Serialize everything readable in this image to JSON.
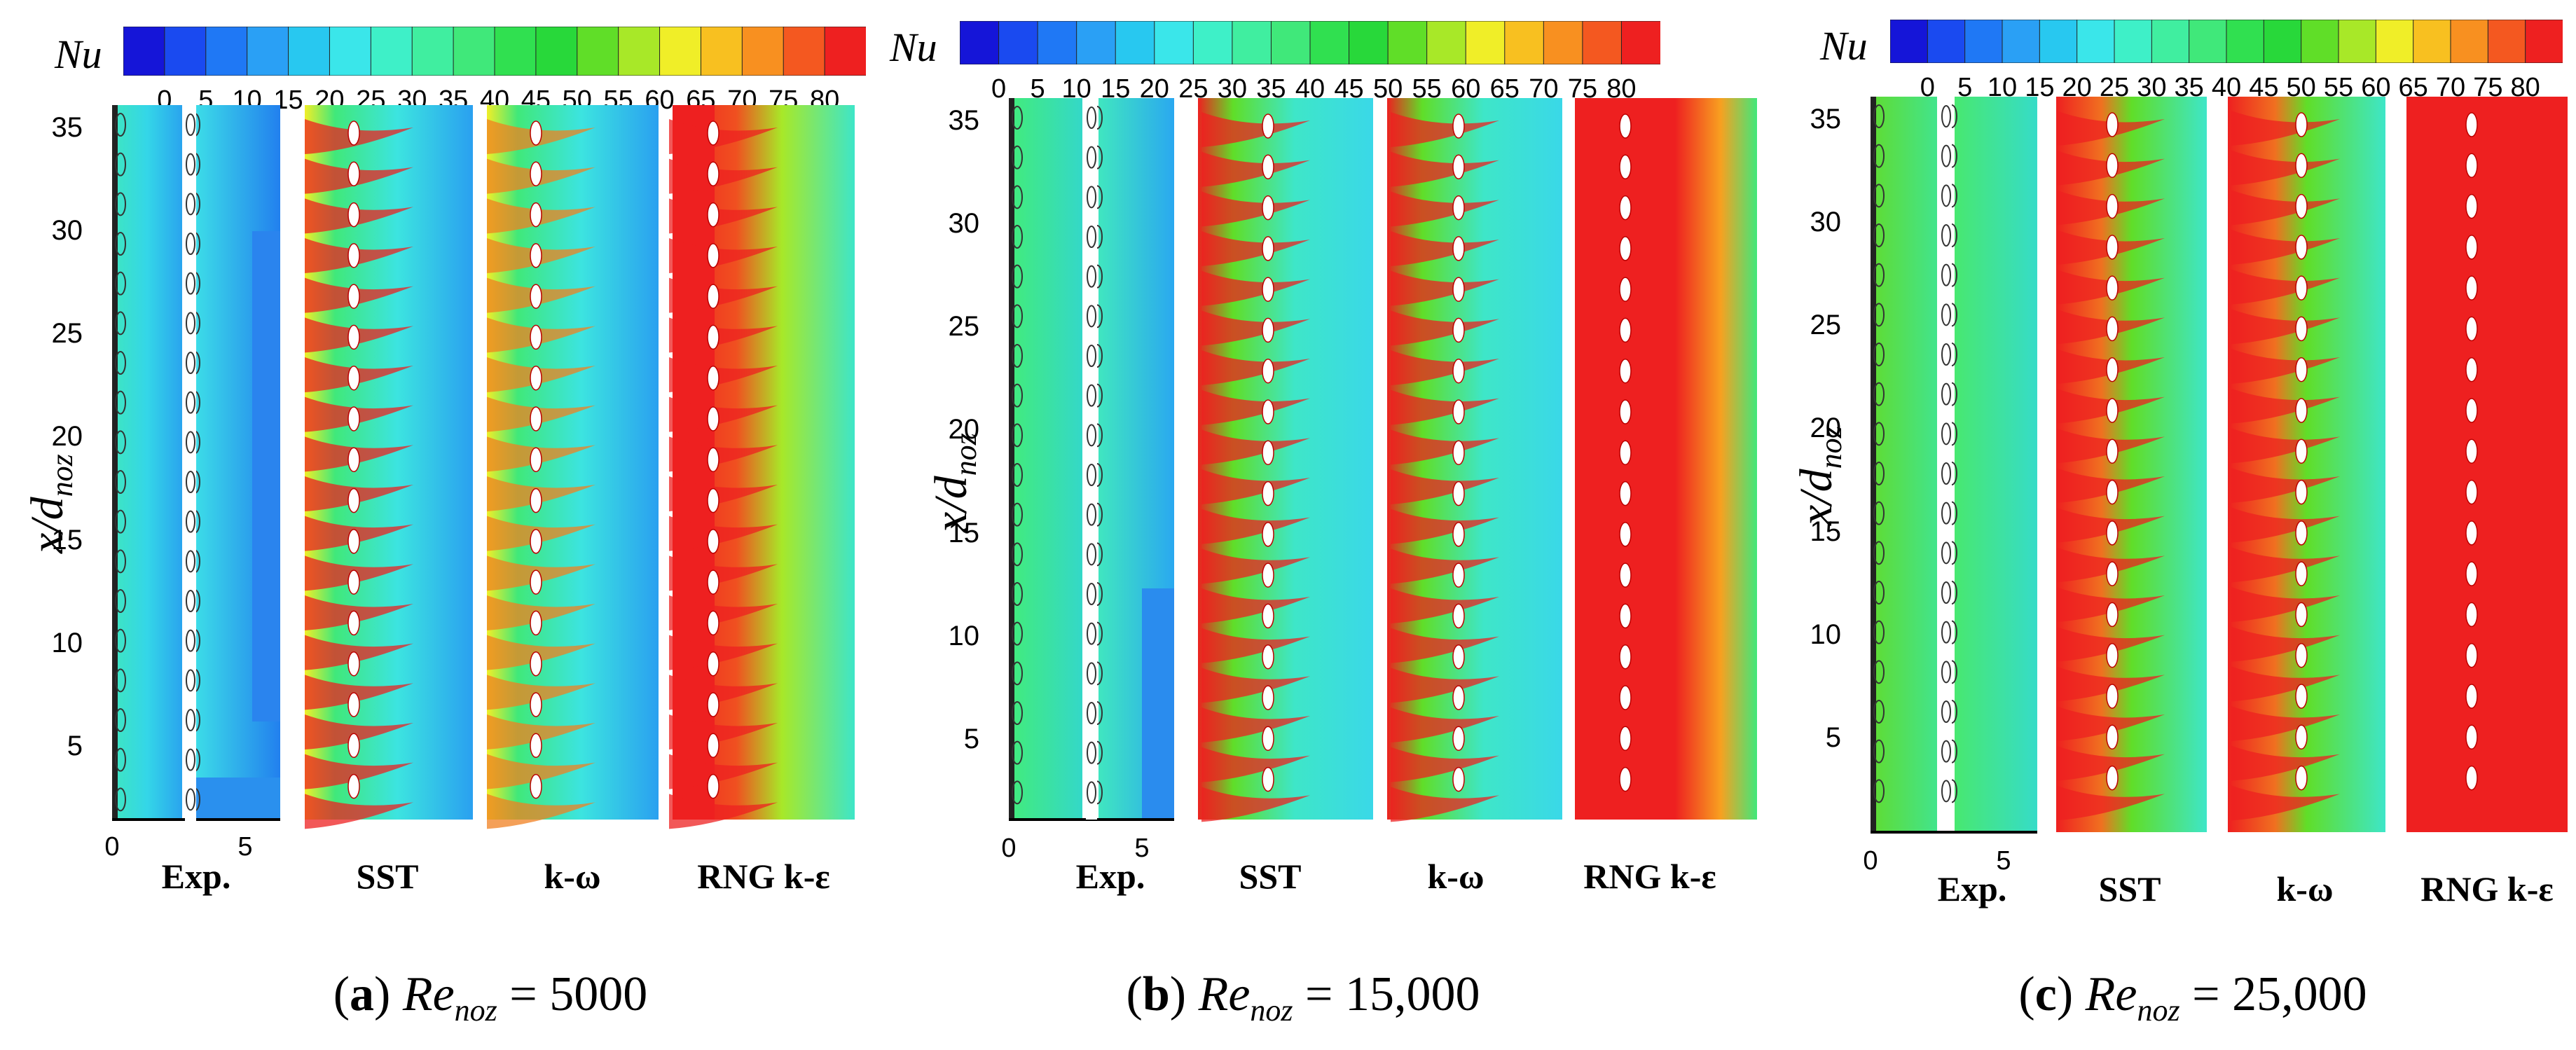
{
  "figure": {
    "colorbar": {
      "label": "Nu",
      "ticks": [
        "0",
        "5",
        "10",
        "15",
        "20",
        "25",
        "30",
        "35",
        "40",
        "45",
        "50",
        "55",
        "60",
        "65",
        "70",
        "75",
        "80"
      ],
      "colors": [
        "#1515d8",
        "#1a4af0",
        "#1f78f5",
        "#2aa0f5",
        "#28c8f0",
        "#3ae6ea",
        "#3ef0c8",
        "#40eea0",
        "#40e87a",
        "#30e050",
        "#28d83a",
        "#60de28",
        "#a8e828",
        "#f0ee28",
        "#f8c020",
        "#f89020",
        "#f45820",
        "#ee2020"
      ]
    },
    "axis": {
      "ylabel_main": "x/d",
      "ylabel_sub": "noz",
      "y_ticks": [
        "35",
        "30",
        "25",
        "20",
        "15",
        "10",
        "5"
      ],
      "x_ticks": [
        "0",
        "5"
      ]
    },
    "strip_titles": [
      "Exp.",
      "SST",
      "k-ω",
      "RNG k-ε"
    ],
    "panels": [
      {
        "letter": "a",
        "re_main": "Re",
        "re_sub": "noz",
        "re_value": "= 5000"
      },
      {
        "letter": "b",
        "re_main": "Re",
        "re_sub": "noz",
        "re_value": "= 15,000"
      },
      {
        "letter": "c",
        "re_main": "Re",
        "re_sub": "noz",
        "re_value": "= 25,000"
      }
    ]
  }
}
